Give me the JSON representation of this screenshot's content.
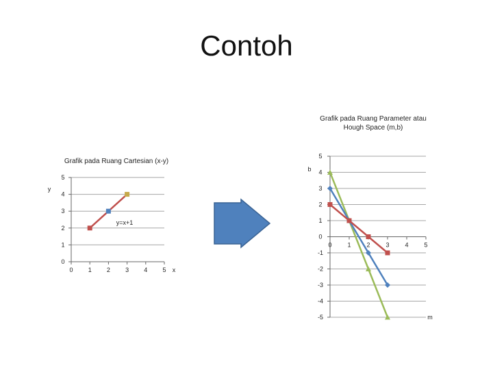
{
  "slide": {
    "title": "Contoh"
  },
  "colors": {
    "red": "#c0504d",
    "blue": "#4f81bd",
    "green": "#9bbb59",
    "tan": "#c6a94b",
    "arrow_fill": "#4f81bd",
    "arrow_stroke": "#3a6394"
  },
  "chart_data": [
    {
      "type": "line",
      "title": "Grafik pada Ruang Cartesian (x-y)",
      "xlabel": "x",
      "ylabel": "y",
      "xlim": [
        0,
        5
      ],
      "ylim": [
        0,
        5
      ],
      "x_ticks": [
        "0",
        "1",
        "2",
        "3",
        "4",
        "5"
      ],
      "y_ticks": [
        "0",
        "1",
        "2",
        "3",
        "4",
        "5"
      ],
      "grid": "horizontal",
      "annotation": "y=x+1",
      "series": [
        {
          "color": "#c0504d",
          "points": [
            [
              1,
              2
            ],
            [
              2,
              3
            ],
            [
              3,
              4
            ]
          ],
          "marker_colors": [
            "#c0504d",
            "#4f81bd",
            "#c6a94b"
          ]
        }
      ]
    },
    {
      "type": "line",
      "title": "Grafik pada Ruang Parameter atau Hough Space (m,b)",
      "xlabel": "m",
      "ylabel": "b",
      "xlim": [
        0,
        5
      ],
      "ylim": [
        -5,
        5
      ],
      "x_ticks": [
        "0",
        "1",
        "2",
        "3",
        "4",
        "5"
      ],
      "y_ticks": [
        "5",
        "4",
        "3",
        "2",
        "1",
        "0",
        "-1",
        "-2",
        "-3",
        "-4",
        "-5"
      ],
      "grid": "horizontal",
      "series": [
        {
          "color": "#9bbb59",
          "marker": "triangle",
          "points": [
            [
              0,
              4
            ],
            [
              1,
              1
            ],
            [
              2,
              -2
            ],
            [
              3,
              -5
            ]
          ]
        },
        {
          "color": "#4f81bd",
          "marker": "diamond",
          "points": [
            [
              0,
              3
            ],
            [
              1,
              1
            ],
            [
              2,
              -1
            ],
            [
              3,
              -3
            ]
          ]
        },
        {
          "color": "#c0504d",
          "marker": "square",
          "points": [
            [
              0,
              2
            ],
            [
              1,
              1
            ],
            [
              2,
              0
            ],
            [
              3,
              -1
            ]
          ]
        }
      ]
    }
  ]
}
